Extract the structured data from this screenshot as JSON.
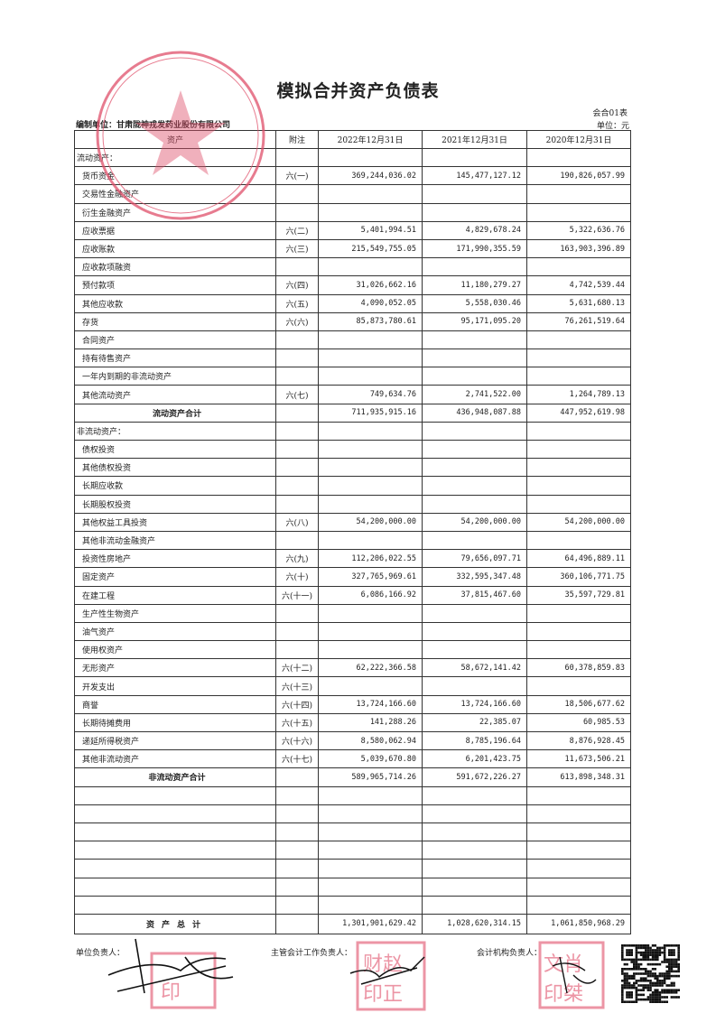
{
  "title": "模拟合并资产负债表",
  "form_code": "会合01表",
  "preparer": "编制单位：甘肃陇神戎发药业股份有限公司",
  "currency_unit": "单位：元",
  "columns": [
    "资产",
    "附注",
    "2022年12月31日",
    "2021年12月31日",
    "2020年12月31日"
  ],
  "rows": [
    {
      "type": "section",
      "label": "流动资产：",
      "note": "",
      "v2022": "",
      "v2021": "",
      "v2020": ""
    },
    {
      "type": "item",
      "label": "货币资金",
      "note": "六(一)",
      "v2022": "369,244,036.02",
      "v2021": "145,477,127.12",
      "v2020": "190,826,057.99"
    },
    {
      "type": "item",
      "label": "交易性金融资产",
      "note": "",
      "v2022": "",
      "v2021": "",
      "v2020": ""
    },
    {
      "type": "item",
      "label": "衍生金融资产",
      "note": "",
      "v2022": "",
      "v2021": "",
      "v2020": ""
    },
    {
      "type": "item",
      "label": "应收票据",
      "note": "六(二)",
      "v2022": "5,401,994.51",
      "v2021": "4,829,678.24",
      "v2020": "5,322,636.76"
    },
    {
      "type": "item",
      "label": "应收账款",
      "note": "六(三)",
      "v2022": "215,549,755.05",
      "v2021": "171,990,355.59",
      "v2020": "163,903,396.89"
    },
    {
      "type": "item",
      "label": "应收款项融资",
      "note": "",
      "v2022": "",
      "v2021": "",
      "v2020": ""
    },
    {
      "type": "item",
      "label": "预付款项",
      "note": "六(四)",
      "v2022": "31,026,662.16",
      "v2021": "11,180,279.27",
      "v2020": "4,742,539.44"
    },
    {
      "type": "item",
      "label": "其他应收款",
      "note": "六(五)",
      "v2022": "4,090,052.05",
      "v2021": "5,558,030.46",
      "v2020": "5,631,680.13"
    },
    {
      "type": "item",
      "label": "存货",
      "note": "六(六)",
      "v2022": "85,873,780.61",
      "v2021": "95,171,095.20",
      "v2020": "76,261,519.64"
    },
    {
      "type": "item",
      "label": "合同资产",
      "note": "",
      "v2022": "",
      "v2021": "",
      "v2020": ""
    },
    {
      "type": "item",
      "label": "持有待售资产",
      "note": "",
      "v2022": "",
      "v2021": "",
      "v2020": ""
    },
    {
      "type": "item",
      "label": "一年内到期的非流动资产",
      "note": "",
      "v2022": "",
      "v2021": "",
      "v2020": ""
    },
    {
      "type": "item",
      "label": "其他流动资产",
      "note": "六(七)",
      "v2022": "749,634.76",
      "v2021": "2,741,522.00",
      "v2020": "1,264,789.13"
    },
    {
      "type": "subtotal",
      "label": "流动资产合计",
      "note": "",
      "v2022": "711,935,915.16",
      "v2021": "436,948,087.88",
      "v2020": "447,952,619.98"
    },
    {
      "type": "section",
      "label": "非流动资产：",
      "note": "",
      "v2022": "",
      "v2021": "",
      "v2020": ""
    },
    {
      "type": "item",
      "label": "债权投资",
      "note": "",
      "v2022": "",
      "v2021": "",
      "v2020": ""
    },
    {
      "type": "item",
      "label": "其他债权投资",
      "note": "",
      "v2022": "",
      "v2021": "",
      "v2020": ""
    },
    {
      "type": "item",
      "label": "长期应收款",
      "note": "",
      "v2022": "",
      "v2021": "",
      "v2020": ""
    },
    {
      "type": "item",
      "label": "长期股权投资",
      "note": "",
      "v2022": "",
      "v2021": "",
      "v2020": ""
    },
    {
      "type": "item",
      "label": "其他权益工具投资",
      "note": "六(八)",
      "v2022": "54,200,000.00",
      "v2021": "54,200,000.00",
      "v2020": "54,200,000.00"
    },
    {
      "type": "item",
      "label": "其他非流动金融资产",
      "note": "",
      "v2022": "",
      "v2021": "",
      "v2020": ""
    },
    {
      "type": "item",
      "label": "投资性房地产",
      "note": "六(九)",
      "v2022": "112,206,022.55",
      "v2021": "79,656,097.71",
      "v2020": "64,496,889.11"
    },
    {
      "type": "item",
      "label": "固定资产",
      "note": "六(十)",
      "v2022": "327,765,969.61",
      "v2021": "332,595,347.48",
      "v2020": "360,106,771.75"
    },
    {
      "type": "item",
      "label": "在建工程",
      "note": "六(十一)",
      "v2022": "6,086,166.92",
      "v2021": "37,815,467.60",
      "v2020": "35,597,729.81"
    },
    {
      "type": "item",
      "label": "生产性生物资产",
      "note": "",
      "v2022": "",
      "v2021": "",
      "v2020": ""
    },
    {
      "type": "item",
      "label": "油气资产",
      "note": "",
      "v2022": "",
      "v2021": "",
      "v2020": ""
    },
    {
      "type": "item",
      "label": "使用权资产",
      "note": "",
      "v2022": "",
      "v2021": "",
      "v2020": ""
    },
    {
      "type": "item",
      "label": "无形资产",
      "note": "六(十二)",
      "v2022": "62,222,366.58",
      "v2021": "58,672,141.42",
      "v2020": "60,378,859.83"
    },
    {
      "type": "item",
      "label": "开发支出",
      "note": "六(十三)",
      "v2022": "",
      "v2021": "",
      "v2020": ""
    },
    {
      "type": "item",
      "label": "商誉",
      "note": "六(十四)",
      "v2022": "13,724,166.60",
      "v2021": "13,724,166.60",
      "v2020": "18,506,677.62"
    },
    {
      "type": "item",
      "label": "长期待摊费用",
      "note": "六(十五)",
      "v2022": "141,288.26",
      "v2021": "22,385.07",
      "v2020": "60,985.53"
    },
    {
      "type": "item",
      "label": "递延所得税资产",
      "note": "六(十六)",
      "v2022": "8,580,062.94",
      "v2021": "8,785,196.64",
      "v2020": "8,876,928.45"
    },
    {
      "type": "item",
      "label": "其他非流动资产",
      "note": "六(十七)",
      "v2022": "5,039,670.80",
      "v2021": "6,201,423.75",
      "v2020": "11,673,506.21"
    },
    {
      "type": "subtotal",
      "label": "非流动资产合计",
      "note": "",
      "v2022": "589,965,714.26",
      "v2021": "591,672,226.27",
      "v2020": "613,898,348.31"
    },
    {
      "type": "blank",
      "label": "",
      "note": "",
      "v2022": "",
      "v2021": "",
      "v2020": ""
    },
    {
      "type": "blank",
      "label": "",
      "note": "",
      "v2022": "",
      "v2021": "",
      "v2020": ""
    },
    {
      "type": "blank",
      "label": "",
      "note": "",
      "v2022": "",
      "v2021": "",
      "v2020": ""
    },
    {
      "type": "blank",
      "label": "",
      "note": "",
      "v2022": "",
      "v2021": "",
      "v2020": ""
    },
    {
      "type": "blank",
      "label": "",
      "note": "",
      "v2022": "",
      "v2021": "",
      "v2020": ""
    },
    {
      "type": "blank",
      "label": "",
      "note": "",
      "v2022": "",
      "v2021": "",
      "v2020": ""
    },
    {
      "type": "blank",
      "label": "",
      "note": "",
      "v2022": "",
      "v2021": "",
      "v2020": ""
    },
    {
      "type": "total",
      "label": "资产总计",
      "note": "",
      "v2022": "1,301,901,629.42",
      "v2021": "1,028,620,314.15",
      "v2020": "1,061,850,968.29"
    }
  ],
  "signatures": {
    "legal_rep_label": "单位负责人：",
    "chief_accountant_label": "主管会计工作负责人：",
    "accounting_head_label": "会计机构负责人："
  },
  "stamps": {
    "company_seal_text": "甘肃陇神戎发药业股份有限公司",
    "seal_1": "印",
    "seal_2": "财赵印正",
    "seal_3": "肖文印桀"
  },
  "colors": {
    "stamp_red": "#e0506a",
    "ink": "#222222"
  }
}
